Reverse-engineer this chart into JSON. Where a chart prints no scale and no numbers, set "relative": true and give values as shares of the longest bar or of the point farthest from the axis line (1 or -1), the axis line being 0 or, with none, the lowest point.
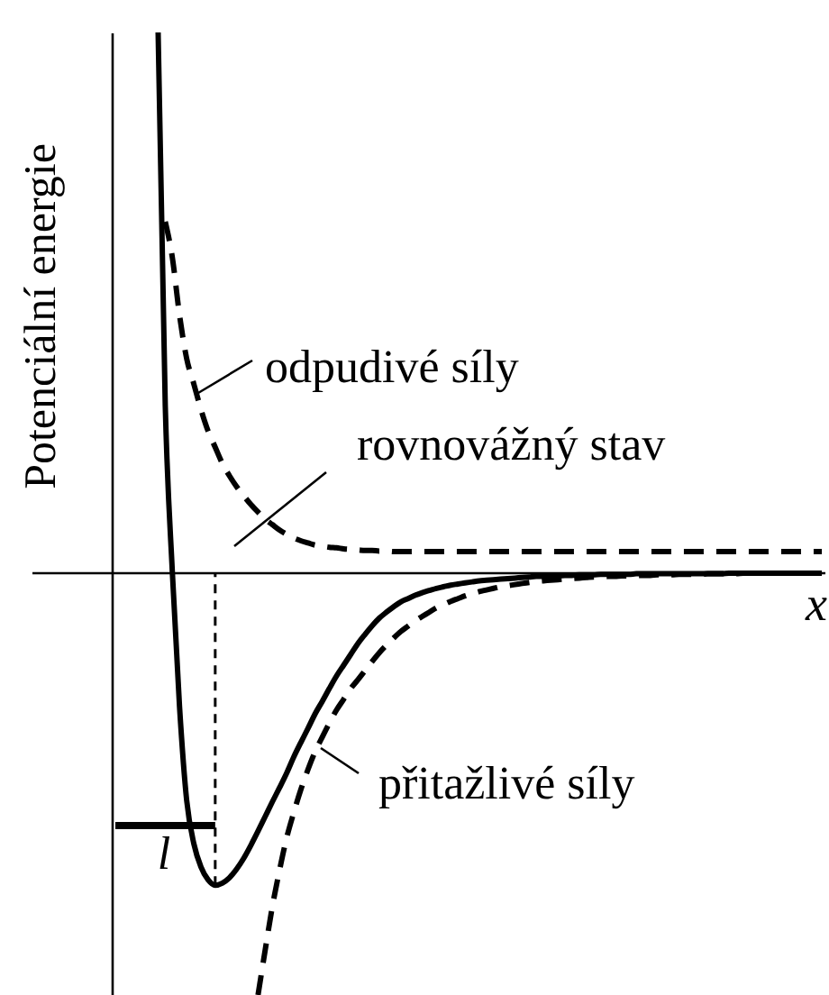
{
  "chart_data": {
    "type": "line",
    "relative": true,
    "xlabel": "x",
    "ylabel": "Potenciální energie",
    "categories": [
      null,
      null,
      null,
      null,
      null,
      null,
      null,
      null,
      null,
      null,
      null,
      null,
      null,
      null,
      null,
      null,
      null,
      null,
      null,
      null,
      null,
      null,
      null,
      null,
      null,
      null,
      null,
      null,
      null,
      null,
      null,
      null,
      null,
      null,
      null,
      null,
      null,
      null,
      null,
      null,
      null,
      null,
      null,
      null,
      null,
      null,
      null,
      null,
      null,
      null,
      null,
      null,
      null,
      null,
      null,
      null,
      null,
      null,
      null,
      null,
      null,
      null,
      null,
      null,
      null,
      null,
      null,
      null,
      null,
      null,
      null,
      null,
      null,
      null,
      null,
      null,
      null,
      null,
      null,
      null,
      null,
      null,
      null,
      null,
      null,
      null,
      null,
      null,
      null,
      null,
      null,
      null,
      null,
      null,
      null,
      null,
      null,
      null,
      null,
      null
    ],
    "series": [
      {
        "color": "#000000",
        "line_style": "solid",
        "values": [
          null,
          null,
          null,
          null,
          null,
          null,
          1.0,
          0.31,
          0.0,
          -0.247,
          -0.42,
          -0.5,
          -0.543,
          -0.567,
          -0.577,
          -0.573,
          -0.563,
          -0.547,
          -0.527,
          -0.503,
          -0.477,
          -0.45,
          -0.423,
          -0.397,
          -0.37,
          -0.34,
          -0.313,
          -0.287,
          -0.26,
          -0.237,
          -0.213,
          -0.19,
          -0.17,
          -0.15,
          -0.13,
          -0.113,
          -0.097,
          -0.083,
          -0.072,
          -0.062,
          -0.053,
          -0.047,
          -0.041,
          -0.036,
          -0.032,
          -0.028,
          -0.025,
          -0.022,
          -0.02,
          -0.018,
          -0.016,
          -0.014,
          -0.013,
          -0.012,
          -0.011,
          -0.01,
          -0.009,
          -0.008,
          -0.007,
          -0.006,
          -0.006,
          -0.005,
          -0.005,
          -0.004,
          -0.004,
          -0.003,
          -0.003,
          -0.003,
          -0.002,
          -0.002,
          -0.002,
          -0.002,
          -0.002,
          -0.001,
          -0.001,
          -0.001,
          -0.001,
          -0.001,
          -0.001,
          -0.001,
          -0.001,
          -0.001,
          -0.001,
          -0.001,
          -0.001,
          -0.001,
          0,
          0,
          0,
          0,
          0,
          0,
          0,
          0,
          0,
          0,
          0,
          0,
          0,
          0
        ]
      },
      {
        "color": "#000000",
        "line_style": "dashed",
        "values": [
          null,
          null,
          null,
          null,
          null,
          null,
          null,
          0.65,
          0.583,
          0.477,
          0.397,
          0.35,
          0.303,
          0.263,
          0.233,
          0.203,
          0.18,
          0.16,
          0.143,
          0.127,
          0.113,
          0.1,
          0.09,
          0.08,
          0.072,
          0.065,
          0.06,
          0.056,
          0.052,
          0.05,
          0.048,
          0.047,
          0.045,
          0.044,
          0.043,
          0.042,
          0.042,
          0.041,
          0.041,
          0.04,
          0.04,
          0.04,
          0.04,
          0.04,
          0.04,
          0.04,
          0.04,
          0.04,
          0.04,
          0.04,
          0.04,
          0.04,
          0.04,
          0.04,
          0.04,
          0.04,
          0.04,
          0.04,
          0.04,
          0.04,
          0.04,
          0.04,
          0.04,
          0.04,
          0.04,
          0.04,
          0.04,
          0.04,
          0.04,
          0.04,
          0.04,
          0.04,
          0.04,
          0.04,
          0.04,
          0.04,
          0.04,
          0.04,
          0.04,
          0.04,
          0.04,
          0.04,
          0.04,
          0.04,
          0.04,
          0.04,
          0.04,
          0.04,
          0.04,
          0.04,
          0.04,
          0.04,
          0.04,
          0.04,
          0.04,
          0.04,
          0.04,
          0.04,
          0.04,
          0.04
        ]
      },
      {
        "color": "#000000",
        "line_style": "dashed",
        "values": [
          null,
          null,
          null,
          null,
          null,
          null,
          null,
          null,
          null,
          null,
          null,
          null,
          null,
          null,
          null,
          null,
          null,
          null,
          null,
          null,
          -0.78,
          -0.697,
          -0.617,
          -0.55,
          -0.49,
          -0.443,
          -0.4,
          -0.363,
          -0.33,
          -0.303,
          -0.277,
          -0.253,
          -0.233,
          -0.213,
          -0.197,
          -0.18,
          -0.163,
          -0.147,
          -0.133,
          -0.12,
          -0.108,
          -0.098,
          -0.088,
          -0.08,
          -0.072,
          -0.064,
          -0.058,
          -0.052,
          -0.047,
          -0.042,
          -0.038,
          -0.034,
          -0.031,
          -0.028,
          -0.025,
          -0.023,
          -0.021,
          -0.019,
          -0.017,
          -0.015,
          -0.014,
          -0.013,
          -0.012,
          -0.011,
          -0.01,
          -0.009,
          -0.008,
          -0.007,
          -0.007,
          -0.006,
          -0.006,
          -0.005,
          -0.005,
          -0.004,
          -0.004,
          -0.004,
          -0.003,
          -0.003,
          -0.003,
          -0.002,
          -0.002,
          -0.002,
          -0.002,
          -0.001,
          -0.001,
          -0.001,
          -0.001,
          -0.001,
          0,
          0,
          0,
          0,
          0,
          0,
          0,
          0,
          0,
          0,
          0,
          0
        ]
      }
    ],
    "annotations": [
      "odpudivé síly",
      "rovnovážný stav",
      "přitažlivé síly",
      "l"
    ]
  }
}
